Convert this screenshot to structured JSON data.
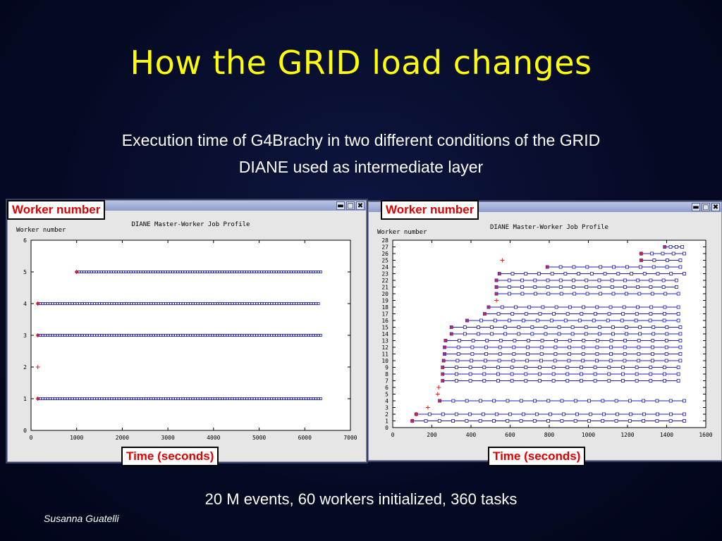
{
  "slide": {
    "title": "How the GRID load changes",
    "subtitle_line1": "Execution time of G4Brachy in two different conditions of the GRID",
    "subtitle_line2": "DIANE used as intermediate layer",
    "footer": "20 M events, 60 workers initialized, 360 tasks",
    "author": "Susanna Guatelli"
  },
  "callouts": {
    "left_y": "Worker number",
    "left_x": "Time (seconds)",
    "right_y": "Worker number",
    "right_x": "Time (seconds)"
  },
  "windows": {
    "buttons": [
      "▬",
      "□",
      "✖"
    ]
  },
  "chart_data": [
    {
      "type": "scatter",
      "title": "DIANE Master-Worker Job Profile",
      "ylabel": "Worker number",
      "xlabel": "",
      "xlim": [
        0,
        7000
      ],
      "ylim": [
        0,
        6
      ],
      "xticks": [
        0,
        1000,
        2000,
        3000,
        4000,
        5000,
        6000,
        7000
      ],
      "yticks": [
        0,
        1,
        2,
        3,
        4,
        5,
        6
      ],
      "start_markers": [
        [
          150,
          1
        ],
        [
          150,
          2
        ],
        [
          150,
          3
        ],
        [
          150,
          4
        ],
        [
          1000,
          5
        ]
      ],
      "rows": [
        {
          "worker": 1,
          "start": 150,
          "end": 6350,
          "tasks": 115
        },
        {
          "worker": 3,
          "start": 150,
          "end": 6350,
          "tasks": 115
        },
        {
          "worker": 4,
          "start": 150,
          "end": 6300,
          "tasks": 114
        },
        {
          "worker": 5,
          "start": 1000,
          "end": 6350,
          "tasks": 99
        }
      ],
      "colors": {
        "line": "#2020c0",
        "marker": "#1a1aa0",
        "start": "#e02020"
      }
    },
    {
      "type": "scatter",
      "title": "DIANE Master-Worker Job Profile",
      "ylabel": "Worker number",
      "xlabel": "",
      "xlim": [
        0,
        1600
      ],
      "ylim": [
        0,
        28
      ],
      "xticks": [
        0,
        200,
        400,
        600,
        800,
        1000,
        1200,
        1400,
        1600
      ],
      "yticks": [
        0,
        1,
        2,
        3,
        4,
        5,
        6,
        7,
        8,
        9,
        10,
        11,
        12,
        13,
        14,
        15,
        16,
        17,
        18,
        19,
        20,
        21,
        22,
        23,
        24,
        25,
        26,
        27,
        28
      ],
      "start_markers": [
        [
          100,
          1
        ],
        [
          120,
          2
        ],
        [
          180,
          3
        ],
        [
          230,
          5
        ],
        [
          235,
          6
        ],
        [
          530,
          19
        ],
        [
          560,
          25
        ],
        [
          1270,
          26
        ]
      ],
      "rows": [
        {
          "worker": 1,
          "start": 100,
          "end": 1490,
          "tasks": 20
        },
        {
          "worker": 2,
          "start": 120,
          "end": 1490,
          "tasks": 20
        },
        {
          "worker": 4,
          "start": 240,
          "end": 1490,
          "tasks": 18
        },
        {
          "worker": 7,
          "start": 255,
          "end": 1460,
          "tasks": 17
        },
        {
          "worker": 8,
          "start": 255,
          "end": 1460,
          "tasks": 17
        },
        {
          "worker": 9,
          "start": 255,
          "end": 1460,
          "tasks": 17
        },
        {
          "worker": 10,
          "start": 260,
          "end": 1470,
          "tasks": 17
        },
        {
          "worker": 11,
          "start": 265,
          "end": 1470,
          "tasks": 17
        },
        {
          "worker": 12,
          "start": 265,
          "end": 1470,
          "tasks": 17
        },
        {
          "worker": 13,
          "start": 270,
          "end": 1470,
          "tasks": 17
        },
        {
          "worker": 14,
          "start": 300,
          "end": 1470,
          "tasks": 17
        },
        {
          "worker": 15,
          "start": 300,
          "end": 1470,
          "tasks": 17
        },
        {
          "worker": 16,
          "start": 380,
          "end": 1460,
          "tasks": 15
        },
        {
          "worker": 17,
          "start": 470,
          "end": 1460,
          "tasks": 14
        },
        {
          "worker": 18,
          "start": 490,
          "end": 1460,
          "tasks": 14
        },
        {
          "worker": 20,
          "start": 530,
          "end": 1460,
          "tasks": 14
        },
        {
          "worker": 21,
          "start": 530,
          "end": 1450,
          "tasks": 14
        },
        {
          "worker": 22,
          "start": 530,
          "end": 1450,
          "tasks": 14
        },
        {
          "worker": 23,
          "start": 545,
          "end": 1490,
          "tasks": 14
        },
        {
          "worker": 24,
          "start": 790,
          "end": 1470,
          "tasks": 10
        },
        {
          "worker": 25,
          "start": 1270,
          "end": 1470,
          "tasks": 3
        },
        {
          "worker": 26,
          "start": 1270,
          "end": 1490,
          "tasks": 4
        },
        {
          "worker": 27,
          "start": 1390,
          "end": 1480,
          "tasks": 3
        }
      ],
      "colors": {
        "line": "#2020c0",
        "marker": "#1a1aa0",
        "start": "#e02020"
      }
    }
  ]
}
